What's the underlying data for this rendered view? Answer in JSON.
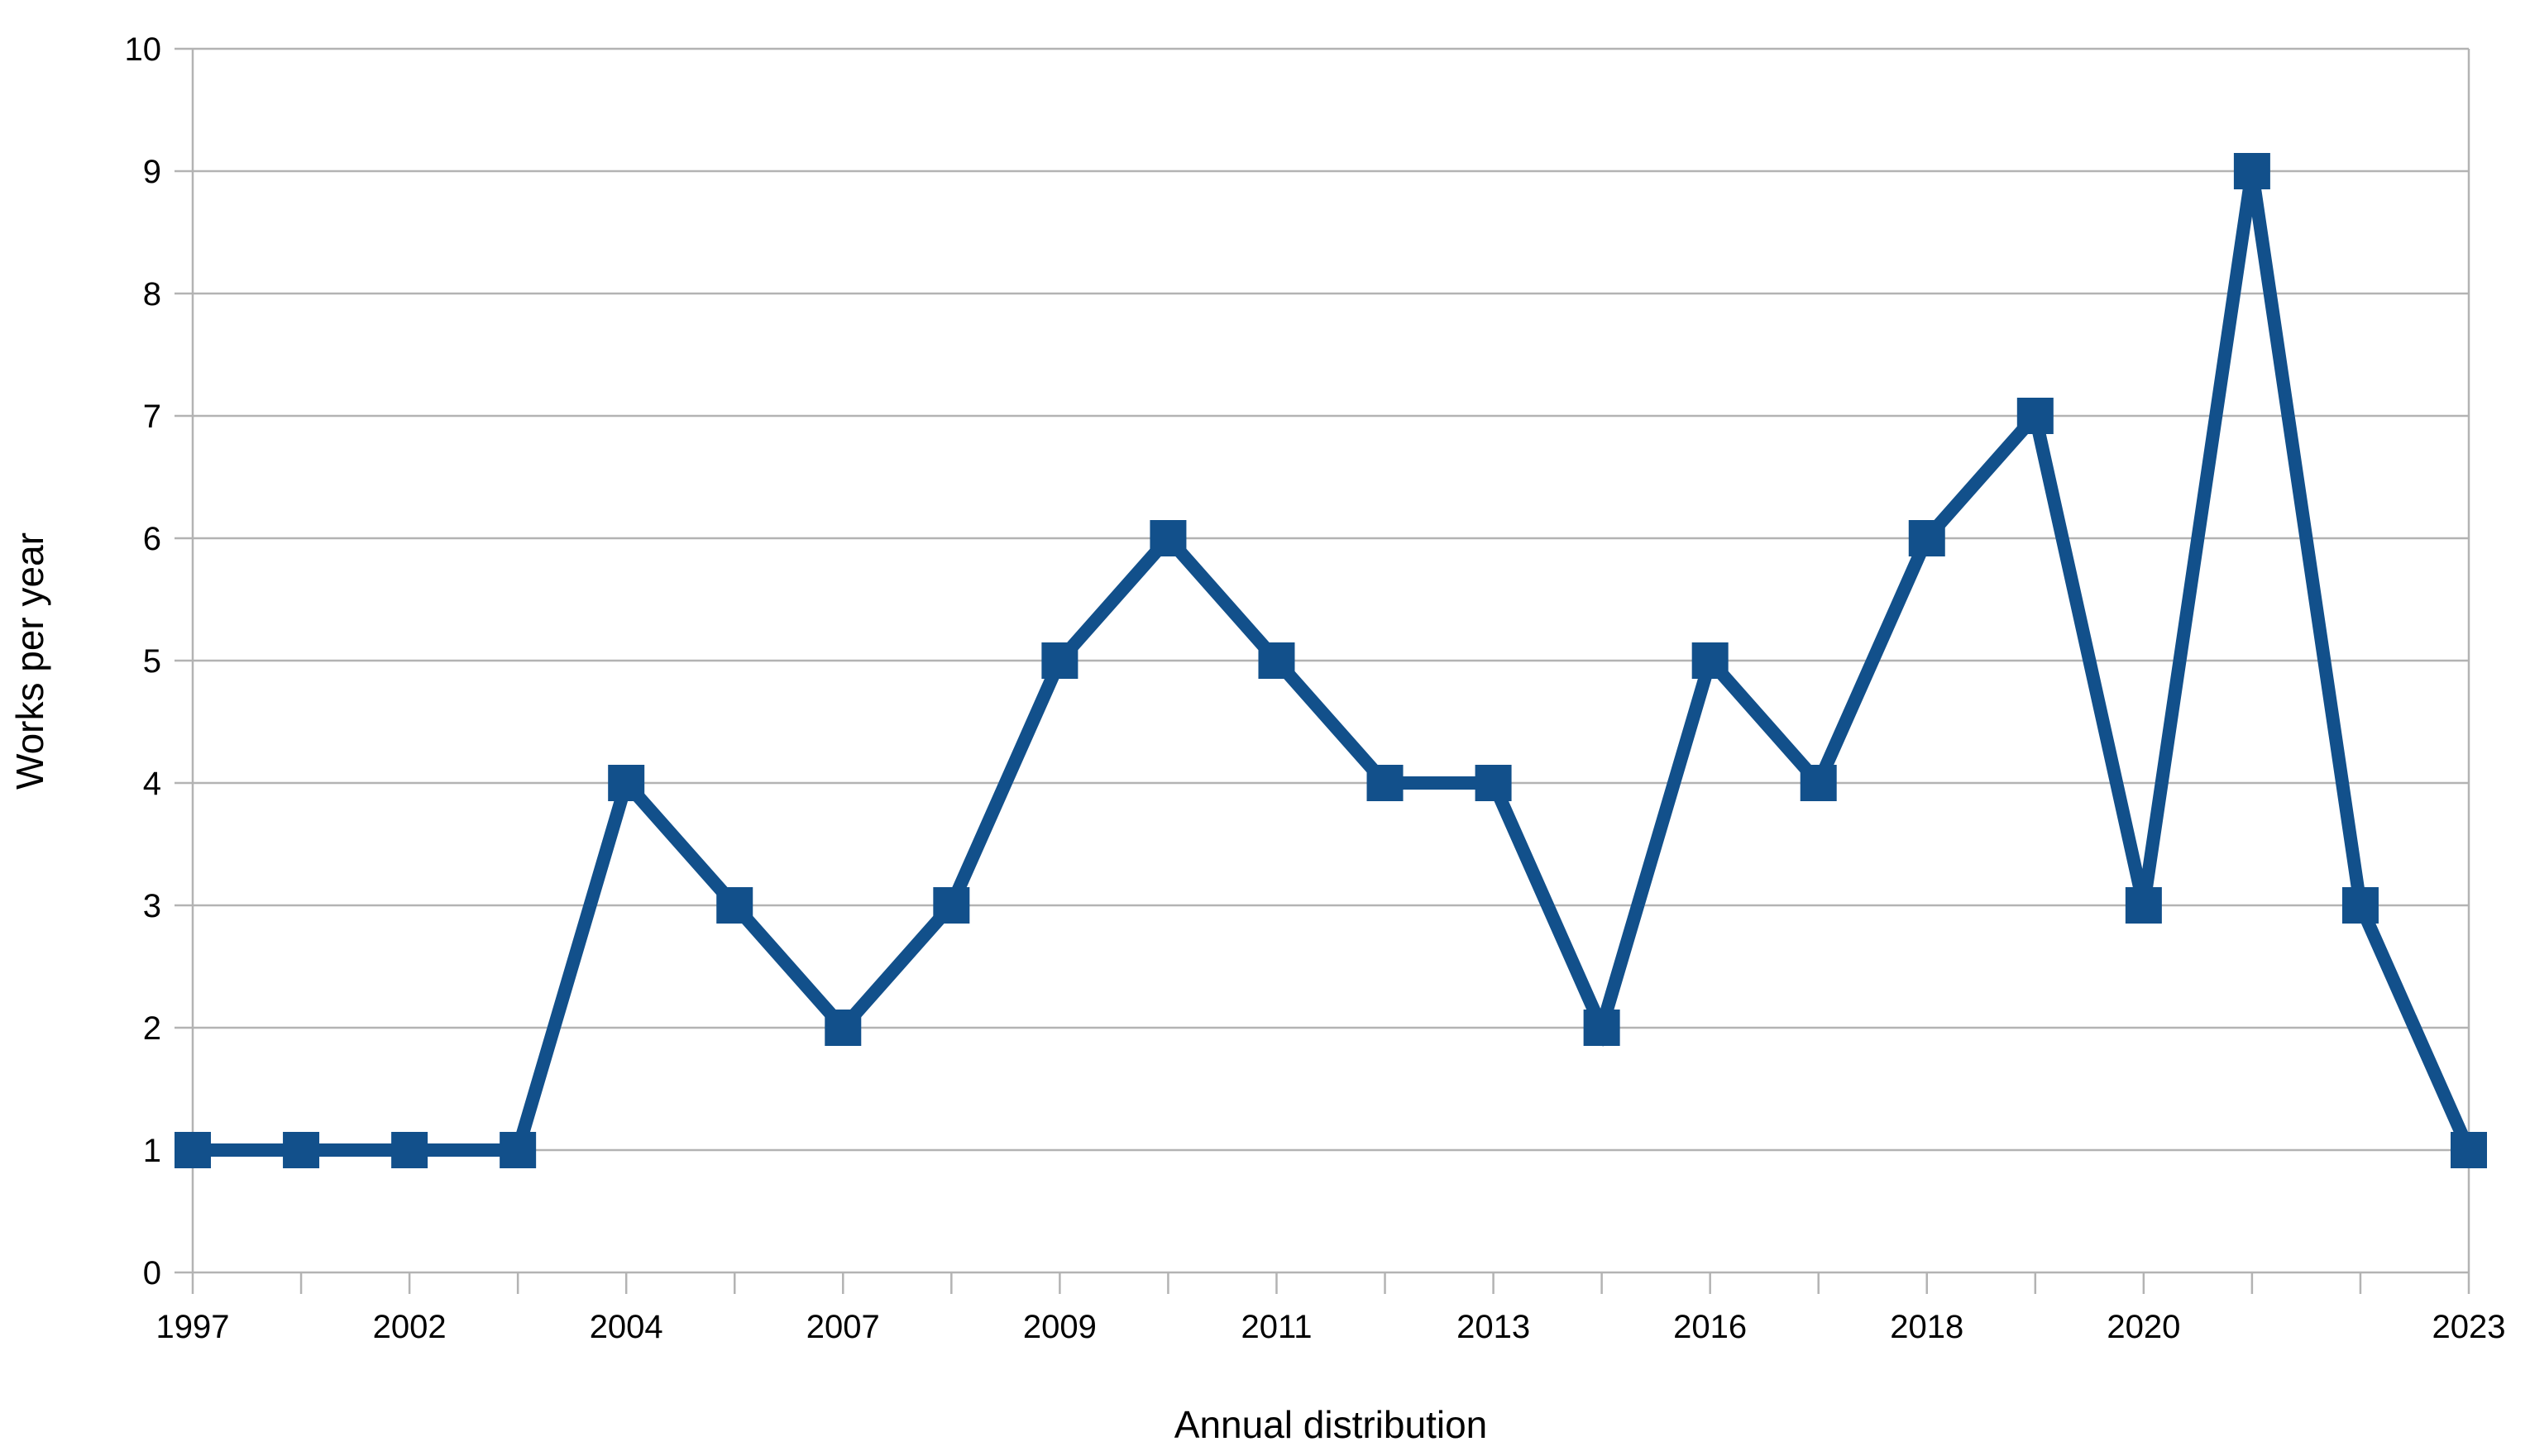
{
  "chart_data": {
    "type": "line",
    "title": "",
    "xlabel": "Annual distribution",
    "ylabel": "Works per year",
    "values": [
      1,
      1,
      1,
      1,
      4,
      3,
      2,
      3,
      5,
      6,
      5,
      4,
      4,
      2,
      5,
      4,
      6,
      7,
      3,
      9,
      3,
      1
    ],
    "x_tick_labels": [
      {
        "index": 0,
        "label": "1997"
      },
      {
        "index": 2,
        "label": "2002"
      },
      {
        "index": 4,
        "label": "2004"
      },
      {
        "index": 6,
        "label": "2007"
      },
      {
        "index": 8,
        "label": "2009"
      },
      {
        "index": 10,
        "label": "2011"
      },
      {
        "index": 12,
        "label": "2013"
      },
      {
        "index": 14,
        "label": "2016"
      },
      {
        "index": 16,
        "label": "2018"
      },
      {
        "index": 18,
        "label": "2020"
      },
      {
        "index": 21,
        "label": "2023"
      }
    ],
    "labeled_points": {
      "1997": 1,
      "2002": 1,
      "2004": 4,
      "2007": 2,
      "2009": 5,
      "2011": 5,
      "2013": 4,
      "2016": 5,
      "2018": 6,
      "2020": 3,
      "2023": 1
    },
    "y_ticks": [
      0,
      1,
      2,
      3,
      4,
      5,
      6,
      7,
      8,
      9,
      10
    ],
    "ylim": [
      0,
      10
    ],
    "grid": "horizontal",
    "legend": "none",
    "marker": "square",
    "series_color": "#12508b",
    "gridline_color": "#b3b3b3",
    "text_color": "#000000",
    "background_color": "#ffffff"
  }
}
